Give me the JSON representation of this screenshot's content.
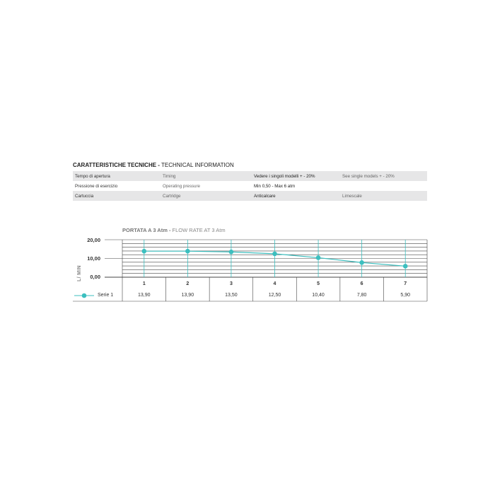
{
  "tech": {
    "title_bold": "CARATTERISTICHE TECNICHE -",
    "title_rest": " TECHNICAL INFORMATION",
    "rows": [
      [
        "Tempo di apertura",
        "Timing",
        "Vedere i singoli modelli + - 20%",
        "See single models + - 20%"
      ],
      [
        "Pressione di esercizio",
        "Operating pressure",
        "Min 0,50 - Max 6 atm",
        ""
      ],
      [
        "Cartuccia",
        "Cartridge",
        "Anticalcare",
        "Limescale"
      ]
    ]
  },
  "chart_data": {
    "type": "line",
    "title_bold": "PORTATA A 3 Atm -",
    "title_rest": " FLOW RATE AT 3 Atm",
    "ylabel": "L/ MIN",
    "xlabel": "",
    "categories": [
      "1",
      "2",
      "3",
      "4",
      "5",
      "6",
      "7"
    ],
    "ylim": [
      0,
      20
    ],
    "yticks": [
      "0,00",
      "10,00",
      "20,00"
    ],
    "grid": true,
    "series": [
      {
        "name": "Serie 1",
        "values": [
          13.9,
          13.9,
          13.5,
          12.5,
          10.4,
          7.8,
          5.9
        ],
        "labels": [
          "13,90",
          "13,90",
          "13,50",
          "12,50",
          "10,40",
          "7,80",
          "5,90"
        ],
        "color": "#3cbfbf"
      }
    ],
    "legend": "data-table-left"
  }
}
